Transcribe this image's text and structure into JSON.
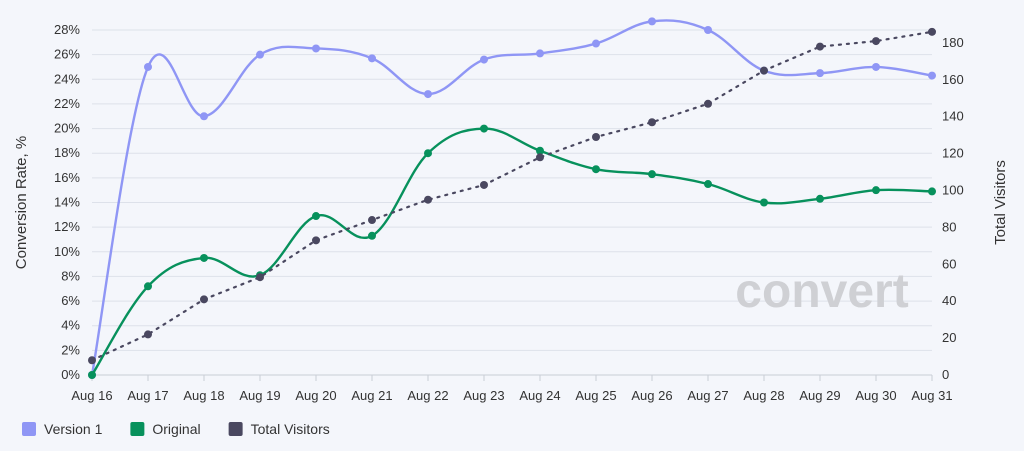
{
  "watermark": "convert",
  "chart_data": {
    "type": "line",
    "categories": [
      "Aug 16",
      "Aug 17",
      "Aug 18",
      "Aug 19",
      "Aug 20",
      "Aug 21",
      "Aug 22",
      "Aug 23",
      "Aug 24",
      "Aug 25",
      "Aug 26",
      "Aug 27",
      "Aug 28",
      "Aug 29",
      "Aug 30",
      "Aug 31"
    ],
    "y_left": {
      "label": "Conversion Rate, %",
      "range": [
        0,
        28
      ],
      "ticks": [
        "0%",
        "2%",
        "4%",
        "6%",
        "8%",
        "10%",
        "12%",
        "14%",
        "16%",
        "18%",
        "20%",
        "22%",
        "24%",
        "26%",
        "28%"
      ]
    },
    "y_right": {
      "label": "Total Visitors",
      "range": [
        0,
        187
      ],
      "ticks": [
        "0",
        "20",
        "40",
        "60",
        "80",
        "100",
        "120",
        "140",
        "160",
        "180"
      ]
    },
    "grid": true,
    "legend_position": "bottom-left",
    "series": [
      {
        "name": "Version 1",
        "axis": "left",
        "smooth": true,
        "color": "#8f96f5",
        "values": [
          0,
          25.0,
          21.0,
          26.0,
          26.5,
          25.7,
          22.8,
          25.6,
          26.1,
          26.9,
          28.7,
          28.0,
          24.7,
          24.5,
          25.0,
          24.3
        ]
      },
      {
        "name": "Original",
        "axis": "left",
        "smooth": true,
        "color": "#07915c",
        "values": [
          0,
          7.2,
          9.5,
          8.1,
          12.9,
          11.3,
          18.0,
          20.0,
          18.2,
          16.7,
          16.3,
          15.5,
          14.0,
          14.3,
          15.0,
          14.9
        ]
      },
      {
        "name": "Total Visitors",
        "axis": "right",
        "smooth": false,
        "dotted": true,
        "color": "#4a4860",
        "values": [
          8,
          22,
          41,
          53,
          73,
          84,
          95,
          103,
          118,
          129,
          137,
          147,
          165,
          178,
          181,
          186
        ]
      }
    ]
  }
}
